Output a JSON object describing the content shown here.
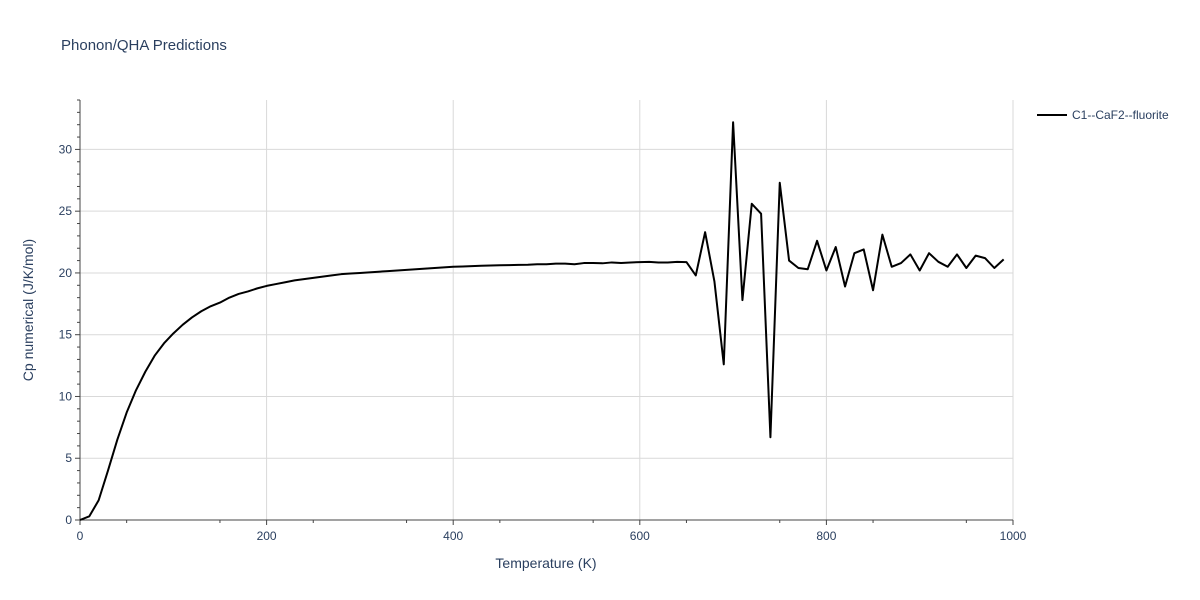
{
  "colors": {
    "series": "#000000",
    "text": "#2a3f5f",
    "grid": "#d9d9d9",
    "axis": "#444444"
  },
  "chart_data": {
    "type": "line",
    "title": "Phonon/QHA Predictions",
    "xlabel": "Temperature (K)",
    "ylabel": "Cp numerical (J/K/mol)",
    "xlim": [
      0,
      1000
    ],
    "ylim": [
      0,
      34
    ],
    "x_ticks": [
      0,
      200,
      400,
      600,
      800,
      1000
    ],
    "y_ticks": [
      0,
      5,
      10,
      15,
      20,
      25,
      30
    ],
    "grid": true,
    "legend_position": "top-right",
    "series": [
      {
        "name": "C1--CaF2--fluorite",
        "color": "#000000",
        "x": [
          0,
          10,
          20,
          30,
          40,
          50,
          60,
          70,
          80,
          90,
          100,
          110,
          120,
          130,
          140,
          150,
          160,
          170,
          180,
          190,
          200,
          210,
          220,
          230,
          240,
          250,
          260,
          270,
          280,
          290,
          300,
          310,
          320,
          330,
          340,
          350,
          360,
          370,
          380,
          390,
          400,
          410,
          420,
          430,
          440,
          450,
          460,
          470,
          480,
          490,
          500,
          510,
          520,
          530,
          540,
          550,
          560,
          570,
          580,
          590,
          600,
          610,
          620,
          630,
          640,
          650,
          660,
          670,
          680,
          690,
          700,
          710,
          720,
          730,
          740,
          750,
          760,
          770,
          780,
          790,
          800,
          810,
          820,
          830,
          840,
          850,
          860,
          870,
          880,
          890,
          900,
          910,
          920,
          930,
          940,
          950,
          960,
          970,
          980,
          990
        ],
        "y": [
          0,
          0.3,
          1.6,
          4.0,
          6.5,
          8.7,
          10.5,
          12.0,
          13.3,
          14.3,
          15.1,
          15.8,
          16.4,
          16.9,
          17.3,
          17.6,
          18.0,
          18.3,
          18.5,
          18.75,
          18.95,
          19.1,
          19.25,
          19.4,
          19.5,
          19.6,
          19.7,
          19.8,
          19.9,
          19.95,
          20.0,
          20.05,
          20.1,
          20.15,
          20.2,
          20.25,
          20.3,
          20.35,
          20.4,
          20.45,
          20.5,
          20.52,
          20.55,
          20.58,
          20.6,
          20.62,
          20.63,
          20.65,
          20.66,
          20.7,
          20.7,
          20.75,
          20.75,
          20.7,
          20.8,
          20.8,
          20.78,
          20.85,
          20.8,
          20.85,
          20.88,
          20.9,
          20.85,
          20.85,
          20.9,
          20.88,
          19.8,
          23.3,
          19.3,
          12.6,
          32.2,
          17.8,
          25.6,
          24.8,
          6.7,
          27.3,
          21.0,
          20.4,
          20.3,
          22.6,
          20.2,
          22.1,
          18.9,
          21.6,
          21.9,
          18.6,
          23.1,
          20.5,
          20.8,
          21.5,
          20.2,
          21.6,
          20.9,
          20.5,
          21.5,
          20.4,
          21.4,
          21.2,
          20.4,
          21.1
        ]
      }
    ]
  }
}
